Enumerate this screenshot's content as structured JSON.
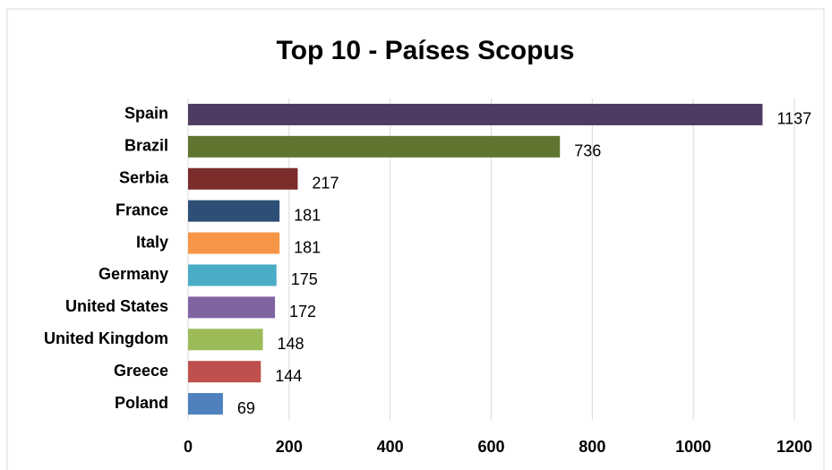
{
  "chart_data": {
    "type": "bar",
    "orientation": "horizontal",
    "title": "Top 10 - Países Scopus",
    "categories": [
      "Spain",
      "Brazil",
      "Serbia",
      "France",
      "Italy",
      "Germany",
      "United States",
      "United Kingdom",
      "Greece",
      "Poland"
    ],
    "values": [
      1137,
      736,
      217,
      181,
      181,
      175,
      172,
      148,
      144,
      69
    ],
    "colors": [
      "#4e3b62",
      "#607530",
      "#7b2c2b",
      "#2d4e75",
      "#f79646",
      "#4bacc6",
      "#8064a2",
      "#9bbb59",
      "#c0504d",
      "#4f81bd"
    ],
    "xlim": [
      0,
      1200
    ],
    "xticks": [
      0,
      200,
      400,
      600,
      800,
      1000,
      1200
    ],
    "grid": true
  }
}
